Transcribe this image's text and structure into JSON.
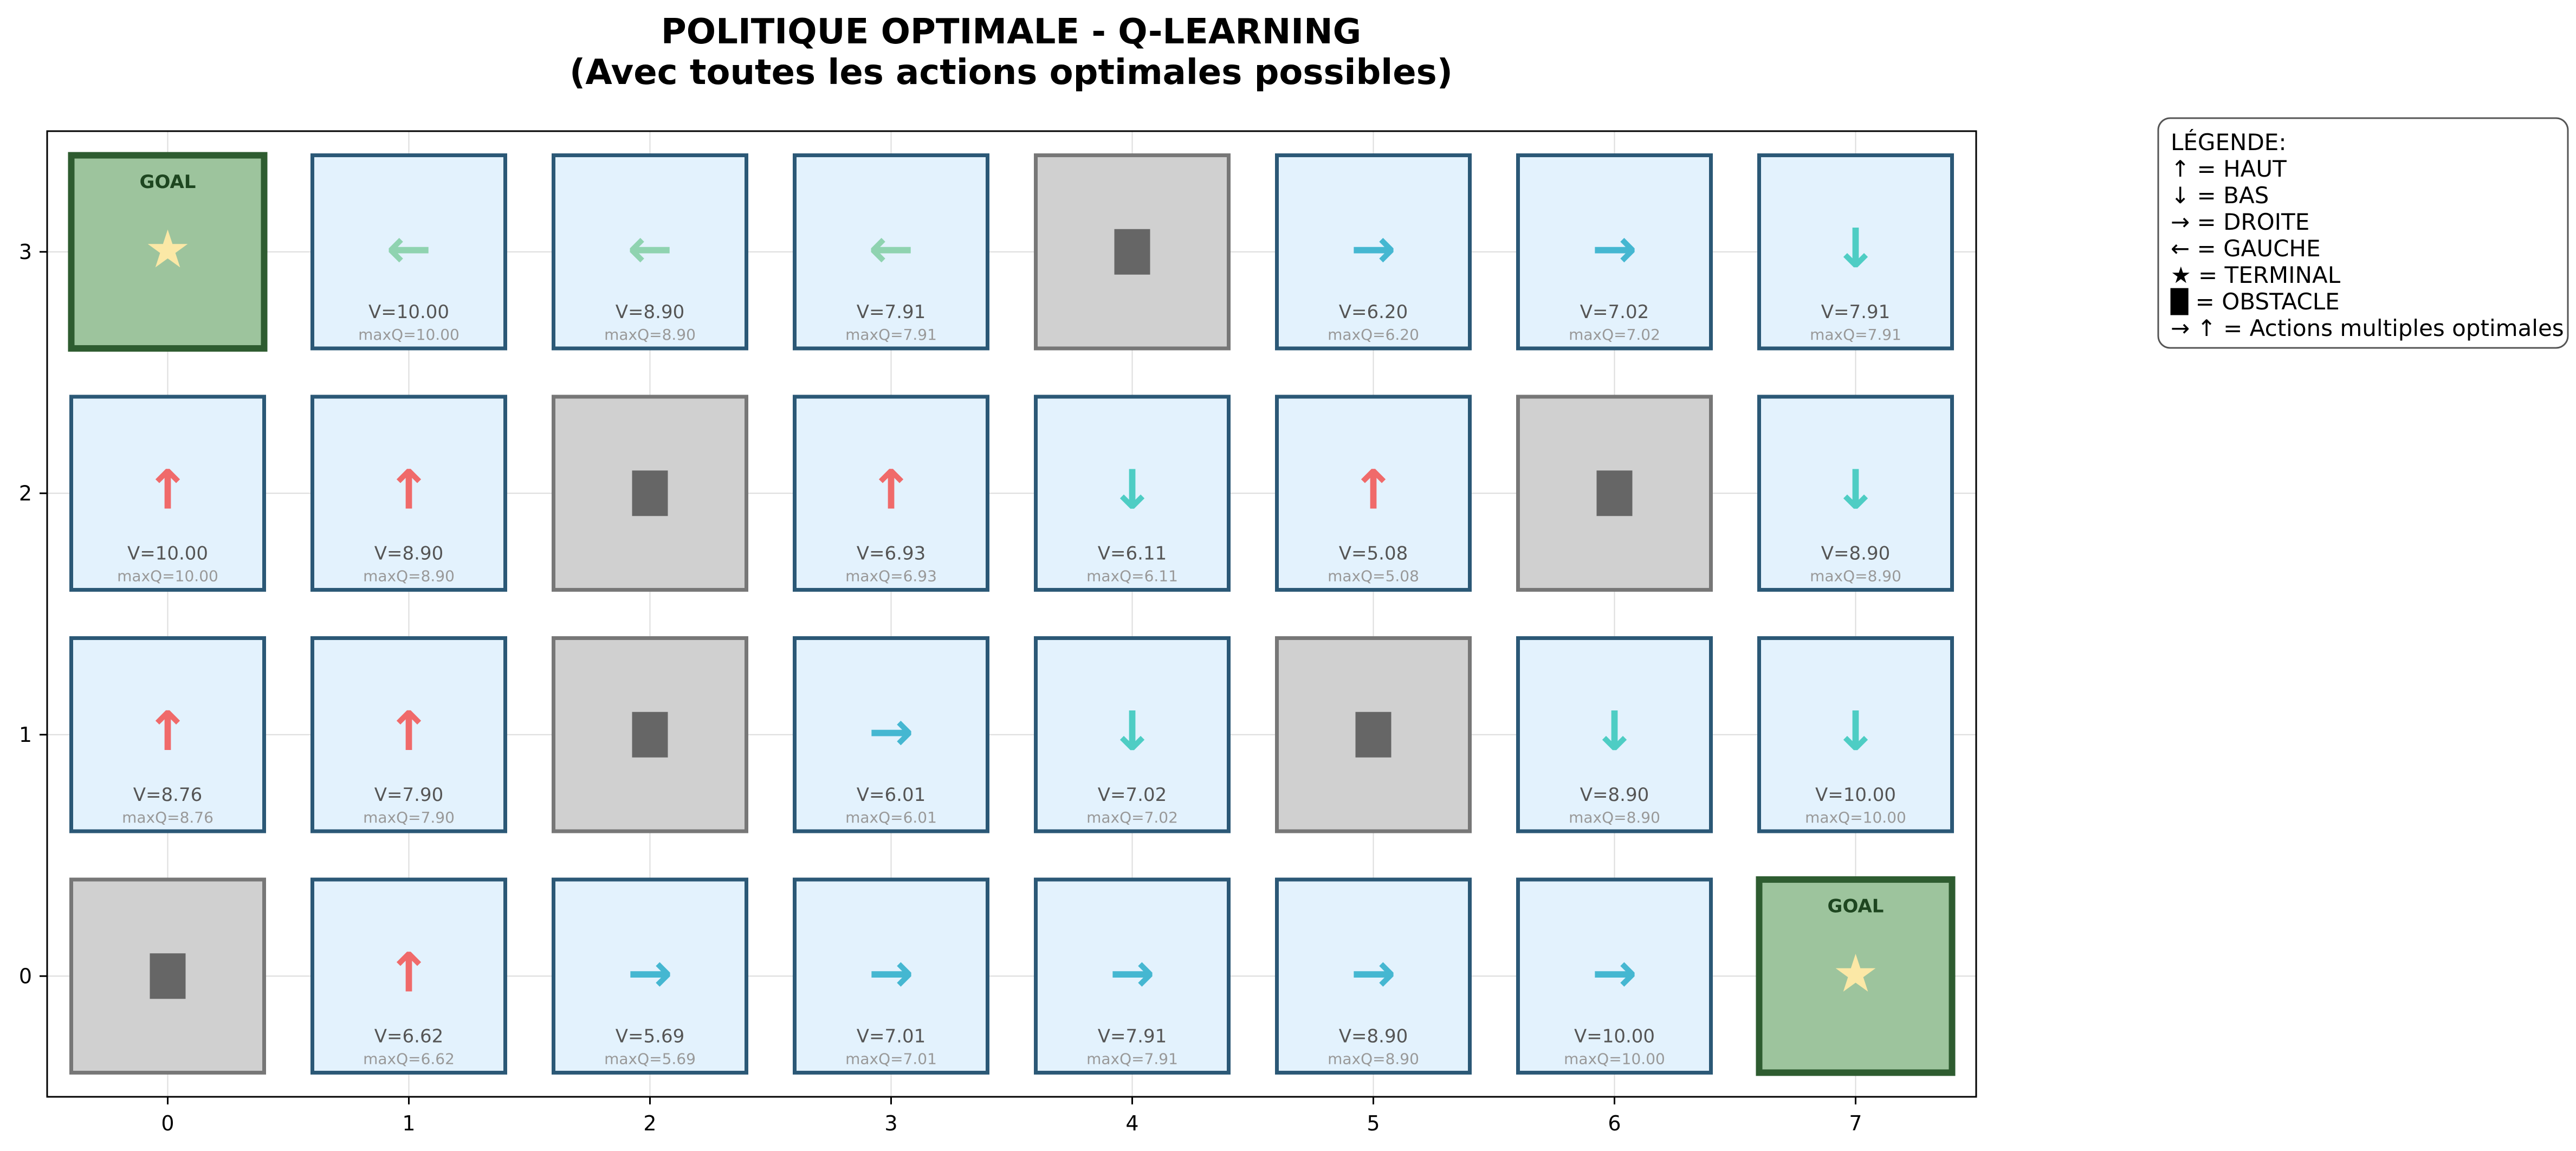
{
  "chart_data": {
    "type": "heatmap",
    "title_lines": [
      "POLITIQUE OPTIMALE - Q-LEARNING",
      "(Avec toutes les actions optimales possibles)"
    ],
    "xlabel": "",
    "ylabel": "",
    "x_ticks": [
      "0",
      "1",
      "2",
      "3",
      "4",
      "5",
      "6",
      "7"
    ],
    "y_ticks": [
      "0",
      "1",
      "2",
      "3"
    ],
    "xlim": [
      -0.5,
      7.5
    ],
    "ylim": [
      -0.5,
      3.5
    ],
    "grid": true,
    "goal_text": "GOAL",
    "legend": {
      "placement": "outside-top-right",
      "lines": [
        "LÉGENDE:",
        "↑ = HAUT",
        "↓ = BAS",
        "→ = DROITE",
        "← = GAUCHE",
        "★ = TERMINAL",
        "█ = OBSTACLE",
        "→ ↑ = Actions multiples optimales"
      ]
    },
    "action_colors": {
      "up": "#f06a6a",
      "down": "#4ecdc4",
      "right": "#45b7d1",
      "left": "#8fd3b0"
    },
    "cell_colors": {
      "state_fill": "#e3f2fd",
      "state_edge": "#2b5876",
      "obstacle_fill": "#d0d0d0",
      "obstacle_edge": "#777777",
      "obstacle_block": "#666666",
      "goal_fill": "#9dc49d",
      "goal_edge": "#2e5c30",
      "star": "#fbe8a6"
    },
    "cells": [
      {
        "x": 0,
        "y": 3,
        "type": "goal"
      },
      {
        "x": 1,
        "y": 3,
        "type": "state",
        "action": "left",
        "V": "V=10.00",
        "maxQ": "maxQ=10.00"
      },
      {
        "x": 2,
        "y": 3,
        "type": "state",
        "action": "left",
        "V": "V=8.90",
        "maxQ": "maxQ=8.90"
      },
      {
        "x": 3,
        "y": 3,
        "type": "state",
        "action": "left",
        "V": "V=7.91",
        "maxQ": "maxQ=7.91"
      },
      {
        "x": 4,
        "y": 3,
        "type": "obstacle"
      },
      {
        "x": 5,
        "y": 3,
        "type": "state",
        "action": "right",
        "V": "V=6.20",
        "maxQ": "maxQ=6.20"
      },
      {
        "x": 6,
        "y": 3,
        "type": "state",
        "action": "right",
        "V": "V=7.02",
        "maxQ": "maxQ=7.02"
      },
      {
        "x": 7,
        "y": 3,
        "type": "state",
        "action": "down",
        "V": "V=7.91",
        "maxQ": "maxQ=7.91"
      },
      {
        "x": 0,
        "y": 2,
        "type": "state",
        "action": "up",
        "V": "V=10.00",
        "maxQ": "maxQ=10.00"
      },
      {
        "x": 1,
        "y": 2,
        "type": "state",
        "action": "up",
        "V": "V=8.90",
        "maxQ": "maxQ=8.90"
      },
      {
        "x": 2,
        "y": 2,
        "type": "obstacle"
      },
      {
        "x": 3,
        "y": 2,
        "type": "state",
        "action": "up",
        "V": "V=6.93",
        "maxQ": "maxQ=6.93"
      },
      {
        "x": 4,
        "y": 2,
        "type": "state",
        "action": "down",
        "V": "V=6.11",
        "maxQ": "maxQ=6.11"
      },
      {
        "x": 5,
        "y": 2,
        "type": "state",
        "action": "up",
        "V": "V=5.08",
        "maxQ": "maxQ=5.08"
      },
      {
        "x": 6,
        "y": 2,
        "type": "obstacle"
      },
      {
        "x": 7,
        "y": 2,
        "type": "state",
        "action": "down",
        "V": "V=8.90",
        "maxQ": "maxQ=8.90"
      },
      {
        "x": 0,
        "y": 1,
        "type": "state",
        "action": "up",
        "V": "V=8.76",
        "maxQ": "maxQ=8.76"
      },
      {
        "x": 1,
        "y": 1,
        "type": "state",
        "action": "up",
        "V": "V=7.90",
        "maxQ": "maxQ=7.90"
      },
      {
        "x": 2,
        "y": 1,
        "type": "obstacle"
      },
      {
        "x": 3,
        "y": 1,
        "type": "state",
        "action": "right",
        "V": "V=6.01",
        "maxQ": "maxQ=6.01"
      },
      {
        "x": 4,
        "y": 1,
        "type": "state",
        "action": "down",
        "V": "V=7.02",
        "maxQ": "maxQ=7.02"
      },
      {
        "x": 5,
        "y": 1,
        "type": "obstacle"
      },
      {
        "x": 6,
        "y": 1,
        "type": "state",
        "action": "down",
        "V": "V=8.90",
        "maxQ": "maxQ=8.90"
      },
      {
        "x": 7,
        "y": 1,
        "type": "state",
        "action": "down",
        "V": "V=10.00",
        "maxQ": "maxQ=10.00"
      },
      {
        "x": 0,
        "y": 0,
        "type": "obstacle"
      },
      {
        "x": 1,
        "y": 0,
        "type": "state",
        "action": "up",
        "V": "V=6.62",
        "maxQ": "maxQ=6.62"
      },
      {
        "x": 2,
        "y": 0,
        "type": "state",
        "action": "right",
        "V": "V=5.69",
        "maxQ": "maxQ=5.69"
      },
      {
        "x": 3,
        "y": 0,
        "type": "state",
        "action": "right",
        "V": "V=7.01",
        "maxQ": "maxQ=7.01"
      },
      {
        "x": 4,
        "y": 0,
        "type": "state",
        "action": "right",
        "V": "V=7.91",
        "maxQ": "maxQ=7.91"
      },
      {
        "x": 5,
        "y": 0,
        "type": "state",
        "action": "right",
        "V": "V=8.90",
        "maxQ": "maxQ=8.90"
      },
      {
        "x": 6,
        "y": 0,
        "type": "state",
        "action": "right",
        "V": "V=10.00",
        "maxQ": "maxQ=10.00"
      },
      {
        "x": 7,
        "y": 0,
        "type": "goal"
      }
    ]
  }
}
